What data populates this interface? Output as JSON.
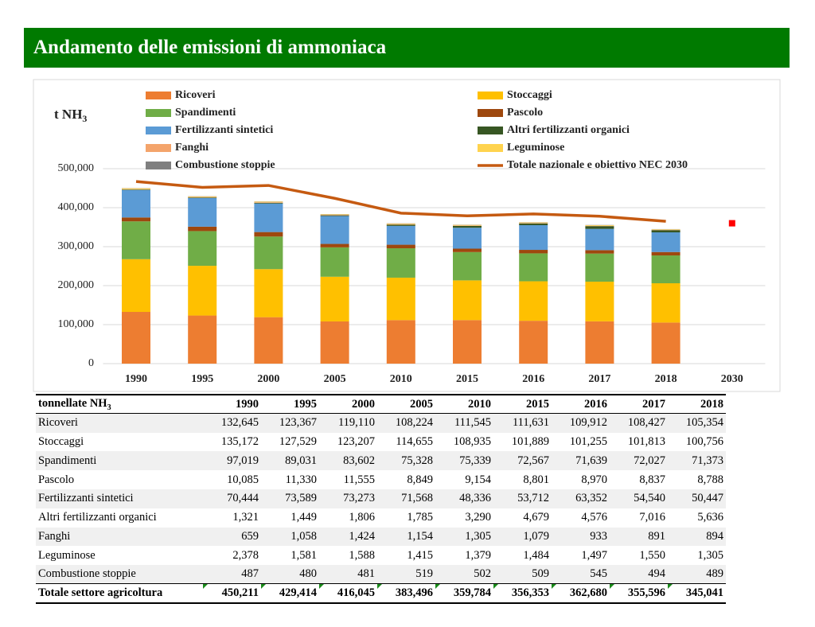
{
  "chart_data": {
    "type": "bar",
    "title": "Andamento delle emissioni di ammoniaca",
    "y_label": "t NH",
    "y_label_sub": "3",
    "categories": [
      "1990",
      "1995",
      "2000",
      "2005",
      "2010",
      "2015",
      "2016",
      "2017",
      "2018",
      "2030"
    ],
    "ylim": [
      0,
      500000
    ],
    "yticks": [
      0,
      {
        "value": 100000,
        "label": "100,000"
      },
      {
        "value": 200000,
        "label": "200,000"
      },
      {
        "value": 300000,
        "label": "300,000"
      },
      {
        "value": 400000,
        "label": "400,000"
      },
      {
        "value": 500000,
        "label": "500,000"
      }
    ],
    "grid": true,
    "stacked": true,
    "series": [
      {
        "name": "Ricoveri",
        "color": "#ed7d31",
        "values": [
          132645,
          123367,
          119110,
          108224,
          111545,
          111631,
          109912,
          108427,
          105354,
          null
        ]
      },
      {
        "name": "Stoccaggi",
        "color": "#ffc000",
        "values": [
          135172,
          127529,
          123207,
          114655,
          108935,
          101889,
          101255,
          101813,
          100756,
          null
        ]
      },
      {
        "name": "Spandimenti",
        "color": "#70ad47",
        "values": [
          97019,
          89031,
          83602,
          75328,
          75339,
          72567,
          71639,
          72027,
          71373,
          null
        ]
      },
      {
        "name": "Pascolo",
        "color": "#9e480e",
        "values": [
          10085,
          11330,
          11555,
          8849,
          9154,
          8801,
          8970,
          8837,
          8788,
          null
        ]
      },
      {
        "name": "Fertilizzanti sintetici",
        "color": "#5b9bd5",
        "values": [
          70444,
          73589,
          73273,
          71568,
          48336,
          53712,
          63352,
          54540,
          50447,
          null
        ]
      },
      {
        "name": "Altri fertilizzanti organici",
        "color": "#375623",
        "values": [
          1321,
          1449,
          1806,
          1785,
          3290,
          4679,
          4576,
          7016,
          5636,
          null
        ]
      },
      {
        "name": "Fanghi",
        "color": "#f4a46b",
        "values": [
          659,
          1058,
          1424,
          1154,
          1305,
          1079,
          933,
          891,
          894,
          null
        ]
      },
      {
        "name": "Leguminose",
        "color": "#ffd34e",
        "values": [
          2378,
          1581,
          1588,
          1415,
          1379,
          1484,
          1497,
          1550,
          1305,
          null
        ]
      },
      {
        "name": "Combustione stoppie",
        "color": "#7f7f7f",
        "values": [
          487,
          480,
          481,
          519,
          502,
          509,
          545,
          494,
          489,
          null
        ]
      },
      {
        "name": "Totale nazionale e obiettivo NEC 2030",
        "type": "line",
        "color": "#c55a11",
        "values": [
          467000,
          452000,
          457000,
          424000,
          386000,
          379000,
          384000,
          378000,
          365000,
          null
        ]
      }
    ],
    "target": {
      "value": 360000,
      "color": "#ff0000"
    }
  },
  "table": {
    "header": [
      "tonnellate NH",
      "1990",
      "1995",
      "2000",
      "2005",
      "2010",
      "2015",
      "2016",
      "2017",
      "2018"
    ],
    "header_sub": "3",
    "rows": [
      [
        "Ricoveri",
        "132,645",
        "123,367",
        "119,110",
        "108,224",
        "111,545",
        "111,631",
        "109,912",
        "108,427",
        "105,354"
      ],
      [
        "Stoccaggi",
        "135,172",
        "127,529",
        "123,207",
        "114,655",
        "108,935",
        "101,889",
        "101,255",
        "101,813",
        "100,756"
      ],
      [
        "Spandimenti",
        "97,019",
        "89,031",
        "83,602",
        "75,328",
        "75,339",
        "72,567",
        "71,639",
        "72,027",
        "71,373"
      ],
      [
        "Pascolo",
        "10,085",
        "11,330",
        "11,555",
        "8,849",
        "9,154",
        "8,801",
        "8,970",
        "8,837",
        "8,788"
      ],
      [
        "Fertilizzanti sintetici",
        "70,444",
        "73,589",
        "73,273",
        "71,568",
        "48,336",
        "53,712",
        "63,352",
        "54,540",
        "50,447"
      ],
      [
        "Altri fertilizzanti organici",
        "1,321",
        "1,449",
        "1,806",
        "1,785",
        "3,290",
        "4,679",
        "4,576",
        "7,016",
        "5,636"
      ],
      [
        "Fanghi",
        "659",
        "1,058",
        "1,424",
        "1,154",
        "1,305",
        "1,079",
        "933",
        "891",
        "894"
      ],
      [
        "Leguminose",
        "2,378",
        "1,581",
        "1,588",
        "1,415",
        "1,379",
        "1,484",
        "1,497",
        "1,550",
        "1,305"
      ],
      [
        "Combustione stoppie",
        "487",
        "480",
        "481",
        "519",
        "502",
        "509",
        "545",
        "494",
        "489"
      ],
      [
        "Totale settore agricoltura",
        "450,211",
        "429,414",
        "416,045",
        "383,496",
        "359,784",
        "356,353",
        "362,680",
        "355,596",
        "345,041"
      ]
    ]
  }
}
